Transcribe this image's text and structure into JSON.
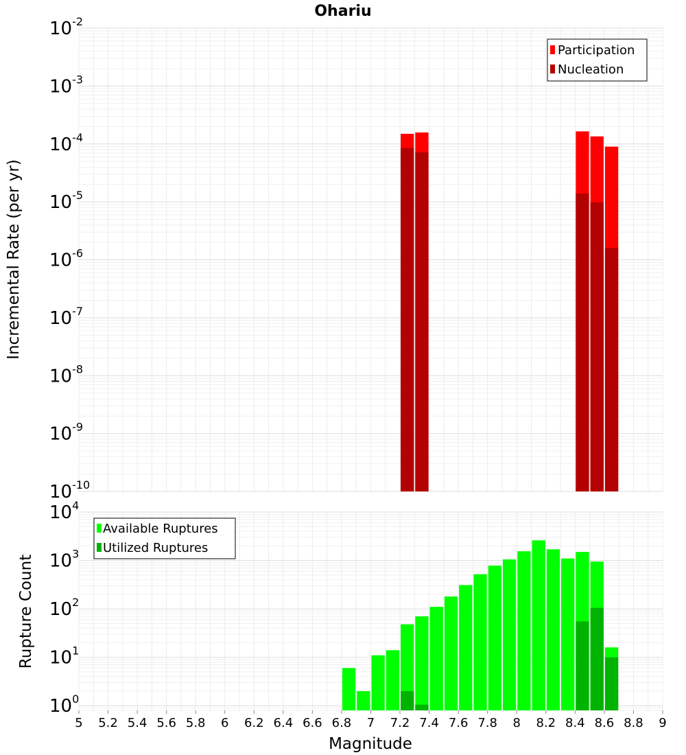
{
  "chart_data": [
    {
      "type": "bar",
      "title": "Ohariu",
      "ylabel": "Incremental Rate (per yr)",
      "xlabel": "",
      "yscale": "log",
      "xlim": [
        5,
        9
      ],
      "ylim": [
        1e-10,
        0.01
      ],
      "y_ticks": [
        {
          "base": "10",
          "exp": "-10"
        },
        {
          "base": "10",
          "exp": "-9"
        },
        {
          "base": "10",
          "exp": "-8"
        },
        {
          "base": "10",
          "exp": "-7"
        },
        {
          "base": "10",
          "exp": "-6"
        },
        {
          "base": "10",
          "exp": "-5"
        },
        {
          "base": "10",
          "exp": "-4"
        },
        {
          "base": "10",
          "exp": "-3"
        },
        {
          "base": "10",
          "exp": "-2"
        }
      ],
      "legend_position": "top-right",
      "grid": true,
      "bin_width": 0.1,
      "series": [
        {
          "name": "Participation",
          "color": "#ff0000",
          "x": [
            7.25,
            7.35,
            8.45,
            8.55,
            8.65
          ],
          "values": [
            0.00015,
            0.000158,
            0.000165,
            0.000135,
            9e-05
          ]
        },
        {
          "name": "Nucleation",
          "color": "#b30000",
          "x": [
            7.25,
            7.35,
            8.45,
            8.55,
            8.65
          ],
          "values": [
            8.5e-05,
            7.2e-05,
            1.4e-05,
            9.8e-06,
            1.6e-06
          ]
        }
      ]
    },
    {
      "type": "bar",
      "title": "",
      "ylabel": "Rupture Count",
      "xlabel": "Magnitude",
      "yscale": "log",
      "xlim": [
        5,
        9
      ],
      "ylim": [
        0.8,
        10000
      ],
      "y_ticks": [
        {
          "base": "10",
          "exp": "0",
          "value": 1
        },
        {
          "base": "10",
          "exp": "1",
          "value": 10
        },
        {
          "base": "10",
          "exp": "2",
          "value": 100
        },
        {
          "base": "10",
          "exp": "3",
          "value": 1000
        },
        {
          "base": "10",
          "exp": "4",
          "value": 10000
        }
      ],
      "x_ticks": [
        "5",
        "5.2",
        "5.4",
        "5.6",
        "5.8",
        "6",
        "6.2",
        "6.4",
        "6.6",
        "6.8",
        "7",
        "7.2",
        "7.4",
        "7.6",
        "7.8",
        "8",
        "8.2",
        "8.4",
        "8.6",
        "8.8",
        "9"
      ],
      "legend_position": "top-left",
      "grid": true,
      "bin_width": 0.1,
      "series": [
        {
          "name": "Available Ruptures",
          "color": "#00ff00",
          "x": [
            6.85,
            6.95,
            7.05,
            7.15,
            7.25,
            7.35,
            7.45,
            7.55,
            7.65,
            7.75,
            7.85,
            7.95,
            8.05,
            8.15,
            8.25,
            8.35,
            8.45,
            8.55,
            8.65
          ],
          "values": [
            6,
            2,
            11,
            14,
            48,
            70,
            110,
            180,
            310,
            520,
            780,
            1050,
            1550,
            2600,
            1700,
            1100,
            1500,
            950,
            16
          ]
        },
        {
          "name": "Utilized Ruptures",
          "color": "#00b300",
          "x": [
            7.25,
            7.35,
            8.45,
            8.55,
            8.65
          ],
          "values": [
            2,
            1.05,
            55,
            105,
            10
          ]
        }
      ]
    }
  ]
}
